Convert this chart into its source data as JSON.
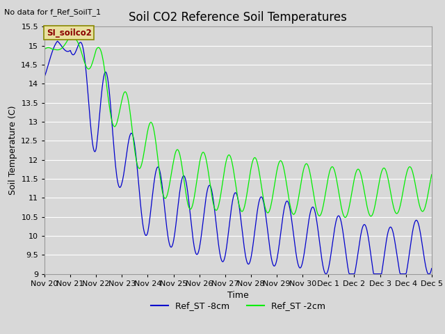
{
  "title": "Soil CO2 Reference Soil Temperatures",
  "ylabel": "Soil Temperature (C)",
  "xlabel": "Time",
  "no_data_text": "No data for f_Ref_SoilT_1",
  "annotation_text": "SI_soilco2",
  "ylim": [
    9.0,
    15.5
  ],
  "yticks": [
    9.0,
    9.5,
    10.0,
    10.5,
    11.0,
    11.5,
    12.0,
    12.5,
    13.0,
    13.5,
    14.0,
    14.5,
    15.0,
    15.5
  ],
  "xtick_labels": [
    "Nov 20",
    "Nov 21",
    "Nov 22",
    "Nov 23",
    "Nov 24",
    "Nov 25",
    "Nov 26",
    "Nov 27",
    "Nov 28",
    "Nov 29",
    "Nov 30",
    "Dec 1",
    "Dec 2",
    "Dec 3",
    "Dec 4",
    "Dec 5"
  ],
  "line1_color": "#0000cc",
  "line2_color": "#00ee00",
  "line1_label": "Ref_ST -8cm",
  "line2_label": "Ref_ST -2cm",
  "bg_color": "#d8d8d8",
  "plot_bg_color": "#d8d8d8",
  "grid_color": "#ffffff",
  "title_fontsize": 12,
  "label_fontsize": 9,
  "tick_fontsize": 8
}
